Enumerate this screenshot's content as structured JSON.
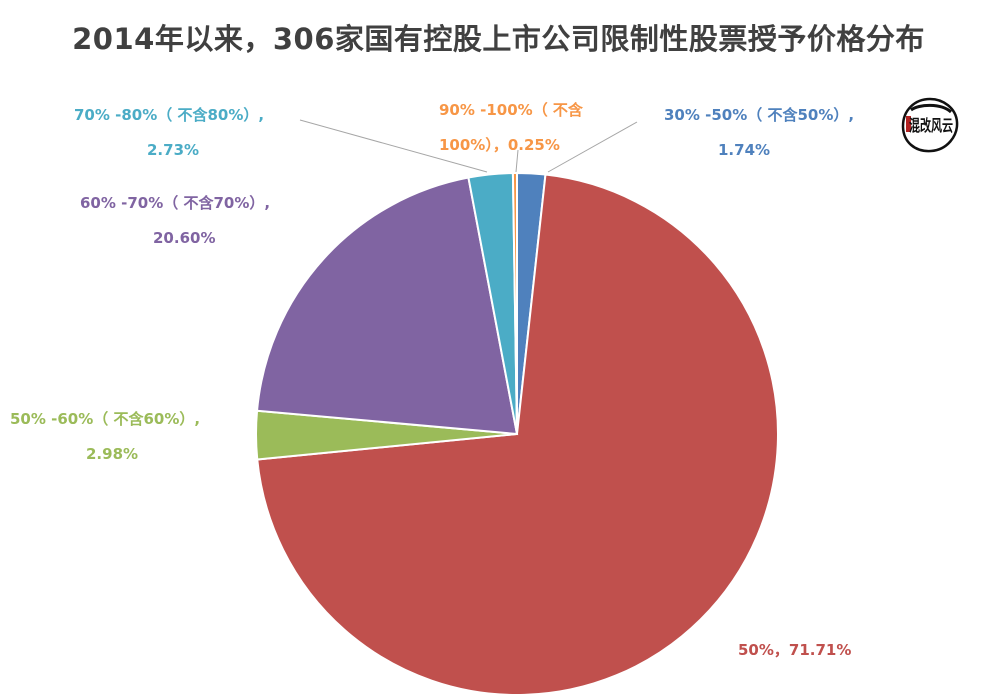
{
  "chart_data": {
    "type": "pie",
    "title": "2014年以来，306家国有控股上市公司限制性股票授予价格分布",
    "slices": [
      {
        "name": "30%-50%（不含50%）",
        "value": 1.74,
        "value_label": "1.74%",
        "color": "#4F81BD",
        "label_line1": "30% -50%（ 不含50%）,",
        "label_line2": "1.74%"
      },
      {
        "name": "50%",
        "value": 71.71,
        "value_label": "71.71%",
        "color": "#C0504D",
        "label_line1": "50%，71.71%",
        "label_line2": ""
      },
      {
        "name": "50%-60%（不含60%）",
        "value": 2.98,
        "value_label": "2.98%",
        "color": "#9BBB59",
        "label_line1": "50% -60%（ 不含60%）,",
        "label_line2": "2.98%"
      },
      {
        "name": "60%-70%（不含70%）",
        "value": 20.6,
        "value_label": "20.60%",
        "color": "#8064A2",
        "label_line1": "60% -70%（ 不含70%）,",
        "label_line2": "20.60%"
      },
      {
        "name": "70%-80%（不含80%）",
        "value": 2.73,
        "value_label": "2.73%",
        "color": "#4BACC6",
        "label_line1": "70% -80%（ 不含80%）,",
        "label_line2": "2.73%"
      },
      {
        "name": "90%-100%（不含100%）",
        "value": 0.25,
        "value_label": "0.25%",
        "color": "#F79646",
        "label_line1": "90% -100%（ 不含",
        "label_line2": "100%），0.25%"
      }
    ],
    "start_angle": "12 o'clock",
    "direction": "clockwise",
    "legend": "none"
  },
  "logo": {
    "text": "混改风云"
  }
}
